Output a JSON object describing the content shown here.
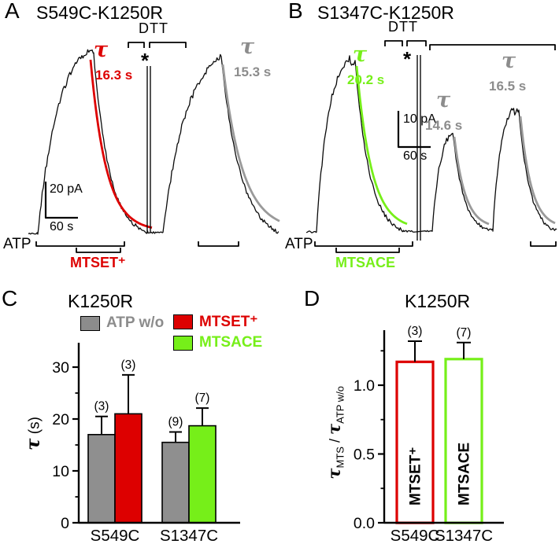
{
  "colors": {
    "red": "#dd0000",
    "green": "#76ef19",
    "gray": "#8c8c8c",
    "gray_fit": "#9a9a9a",
    "black": "#000000"
  },
  "panelA": {
    "label": "A",
    "title": "S549C-K1250R",
    "tau1_symbol": "τ",
    "tau1_value": "16.3 s",
    "dtt_label": "DTT",
    "asterisk": "*",
    "tau2_symbol": "τ",
    "tau2_value": "15.3 s",
    "current_scale": "20 pA",
    "time_scale": "60 s",
    "atp_label": "ATP",
    "reagent_label": "MTSET⁺"
  },
  "panelB": {
    "label": "B",
    "title": "S1347C-K1250R",
    "tau1_symbol": "τ",
    "tau1_value": "20.2 s",
    "dtt_label": "DTT",
    "asterisk": "*",
    "tau2_symbol": "τ",
    "tau2_value": "14.6 s",
    "tau3_symbol": "τ",
    "tau3_value": "16.5 s",
    "current_scale": "10 pA",
    "time_scale": "60 s",
    "atp_label": "ATP",
    "reagent_label": "MTSACE"
  },
  "panelC": {
    "label": "C",
    "title": "K1250R",
    "legend": [
      {
        "label": "ATP w/o",
        "color": "#8c8c8c"
      },
      {
        "label": "MTSET⁺",
        "color": "#dd0000"
      },
      {
        "label": "MTSACE",
        "color": "#76ef19"
      }
    ],
    "ylabel_tau": "τ",
    "ylabel_units": " (s)"
  },
  "panelD": {
    "label": "D",
    "title": "K1250R",
    "ylabel_tau1": "τ",
    "ylabel_sub1": "MTS",
    "ylabel_sep": " / ",
    "ylabel_tau2": "τ",
    "ylabel_sub2": "ATP w/o"
  },
  "chart_data": [
    {
      "panel": "C",
      "type": "bar",
      "title": "K1250R",
      "ylabel": "τ (s)",
      "ylim": [
        0,
        35
      ],
      "yticks": [
        0,
        10,
        20,
        30
      ],
      "ytick_labels": [
        "0",
        "10",
        "20",
        "30"
      ],
      "categories": [
        "S549C",
        "S1347C"
      ],
      "legend": [
        "ATP w/o",
        "MTSET⁺",
        "MTSACE"
      ],
      "bars": [
        {
          "category": "S549C",
          "series": "ATP w/o",
          "value": 17.0,
          "error": 3.5,
          "n_label": "(3)",
          "fill": "#8f8f8f",
          "stroke": "#000000"
        },
        {
          "category": "S549C",
          "series": "MTSET+",
          "value": 21.0,
          "error": 7.5,
          "n_label": "(3)",
          "fill": "#dd0000",
          "stroke": "#000000"
        },
        {
          "category": "S1347C",
          "series": "ATP w/o",
          "value": 15.5,
          "error": 2.0,
          "n_label": "(9)",
          "fill": "#8f8f8f",
          "stroke": "#000000"
        },
        {
          "category": "S1347C",
          "series": "MTSACE",
          "value": 18.7,
          "error": 3.4,
          "n_label": "(7)",
          "fill": "#76ef19",
          "stroke": "#000000"
        }
      ]
    },
    {
      "panel": "D",
      "type": "bar",
      "title": "K1250R",
      "ylabel": "τ_MTS / τ_ATP w/o",
      "ylim": [
        0,
        1.4
      ],
      "yticks": [
        0,
        0.5,
        1.0
      ],
      "ytick_labels": [
        "0.0",
        "0.5",
        "1.0"
      ],
      "categories": [
        "S549C",
        "S1347C"
      ],
      "bars": [
        {
          "category": "S549C",
          "series": "MTSET+",
          "value": 1.17,
          "error": 0.15,
          "n_label": "(3)",
          "fill": "#ffffff",
          "stroke": "#dd0000",
          "inner_label": "MTSET⁺"
        },
        {
          "category": "S1347C",
          "series": "MTSACE",
          "value": 1.19,
          "error": 0.12,
          "n_label": "(7)",
          "fill": "#ffffff",
          "stroke": "#76ef19",
          "inner_label": "MTSACE"
        }
      ]
    }
  ]
}
